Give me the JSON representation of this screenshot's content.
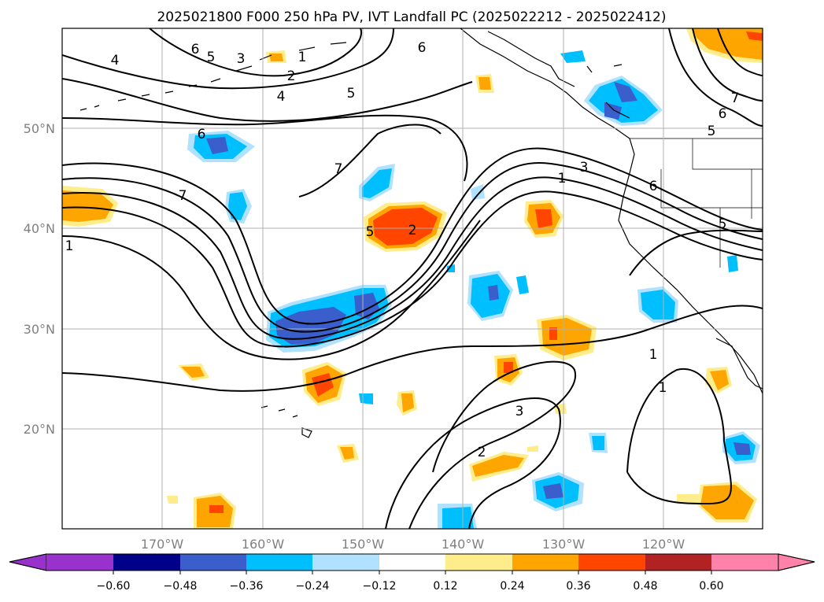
{
  "title": "2025021800 F000 250 hPa PV, IVT Landfall PC (2025022212 - 2025022412)",
  "map": {
    "lon_labels": [
      "170°W",
      "160°W",
      "150°W",
      "140°W",
      "130°W",
      "120°W"
    ],
    "lat_labels": [
      "50°N",
      "40°N",
      "30°N",
      "20°N"
    ],
    "grid": true,
    "contour_labels": [
      "6",
      "5",
      "3",
      "1",
      "4",
      "2",
      "4",
      "5",
      "6",
      "6",
      "7",
      "7",
      "1",
      "5",
      "2",
      "3",
      "1",
      "6",
      "5",
      "1",
      "1",
      "3",
      "2",
      "7",
      "6",
      "5"
    ]
  },
  "colorbar": {
    "ticks": [
      "−0.60",
      "−0.48",
      "−0.36",
      "−0.24",
      "−0.12",
      "0.12",
      "0.24",
      "0.36",
      "0.48",
      "0.60"
    ],
    "colors": [
      "#9932cc",
      "#00008b",
      "#3a5fcd",
      "#00bfff",
      "#b0e2ff",
      "#ffffff",
      "#ffec8b",
      "#ffa500",
      "#ff4500",
      "#b22222",
      "#ff82ab"
    ],
    "extend": "both"
  }
}
